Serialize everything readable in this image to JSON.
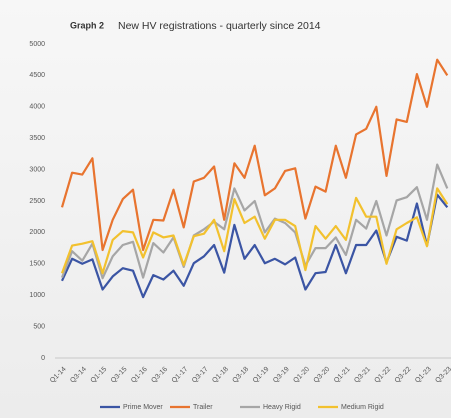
{
  "chart_data": {
    "type": "line",
    "title_prefix": "Graph 2",
    "title": "New HV registrations - quarterly since 2014",
    "categories": [
      "Q1-14",
      null,
      "Q3-14",
      null,
      "Q1-15",
      null,
      "Q3-15",
      null,
      "Q1-16",
      null,
      "Q3-16",
      null,
      "Q1-17",
      null,
      "Q3-17",
      null,
      "Q1-18",
      null,
      "Q3-18",
      null,
      "Q1-19",
      null,
      "Q3-19",
      null,
      "Q1-20",
      null,
      "Q3-20",
      null,
      "Q1-21",
      null,
      "Q3-21",
      null,
      "Q1-22",
      null,
      "Q3-22",
      null,
      "Q1-23",
      null,
      "Q3-23"
    ],
    "series": [
      {
        "name": "Prime Mover",
        "color": "#3b55a4",
        "values": [
          1230,
          1580,
          1500,
          1570,
          1090,
          1300,
          1430,
          1390,
          970,
          1320,
          1250,
          1390,
          1150,
          1510,
          1620,
          1800,
          1360,
          2120,
          1580,
          1800,
          1510,
          1580,
          1490,
          1600,
          1090,
          1350,
          1370,
          1800,
          1350,
          1800,
          1800,
          2030,
          1520,
          1930,
          1870,
          2460,
          1790,
          2600,
          2400
        ]
      },
      {
        "name": "Trailer",
        "color": "#e8742f",
        "values": [
          2400,
          2950,
          2920,
          3180,
          1720,
          2200,
          2530,
          2680,
          1720,
          2200,
          2190,
          2680,
          2080,
          2810,
          2870,
          3050,
          2200,
          3100,
          2870,
          3380,
          2590,
          2700,
          2980,
          3020,
          2220,
          2730,
          2650,
          3380,
          2870,
          3560,
          3650,
          4000,
          2900,
          3800,
          3760,
          4520,
          4000,
          4750,
          4500
        ]
      },
      {
        "name": "Heavy Rigid",
        "color": "#a6a6a6",
        "values": [
          1280,
          1700,
          1550,
          1820,
          1270,
          1620,
          1800,
          1850,
          1280,
          1830,
          1680,
          1920,
          1450,
          1950,
          2050,
          2170,
          2050,
          2700,
          2350,
          2500,
          2000,
          2220,
          2150,
          2000,
          1470,
          1750,
          1750,
          1920,
          1640,
          2200,
          2060,
          2500,
          1950,
          2510,
          2560,
          2720,
          2200,
          3080,
          2700
        ]
      },
      {
        "name": "Medium Rigid",
        "color": "#f2c12e",
        "values": [
          1350,
          1790,
          1820,
          1860,
          1350,
          1880,
          2020,
          2000,
          1600,
          2000,
          1920,
          1950,
          1480,
          1940,
          1980,
          2200,
          1700,
          2530,
          2150,
          2250,
          1900,
          2200,
          2200,
          2100,
          1400,
          2100,
          1900,
          2100,
          1880,
          2550,
          2250,
          2250,
          1500,
          2050,
          2150,
          2240,
          1780,
          2700,
          2450
        ]
      }
    ],
    "ylim": [
      0,
      5000
    ],
    "yticks": [
      0,
      500,
      1000,
      1500,
      2000,
      2500,
      3000,
      3500,
      4000,
      4500,
      5000
    ],
    "grid": false,
    "legend": "bottom"
  }
}
